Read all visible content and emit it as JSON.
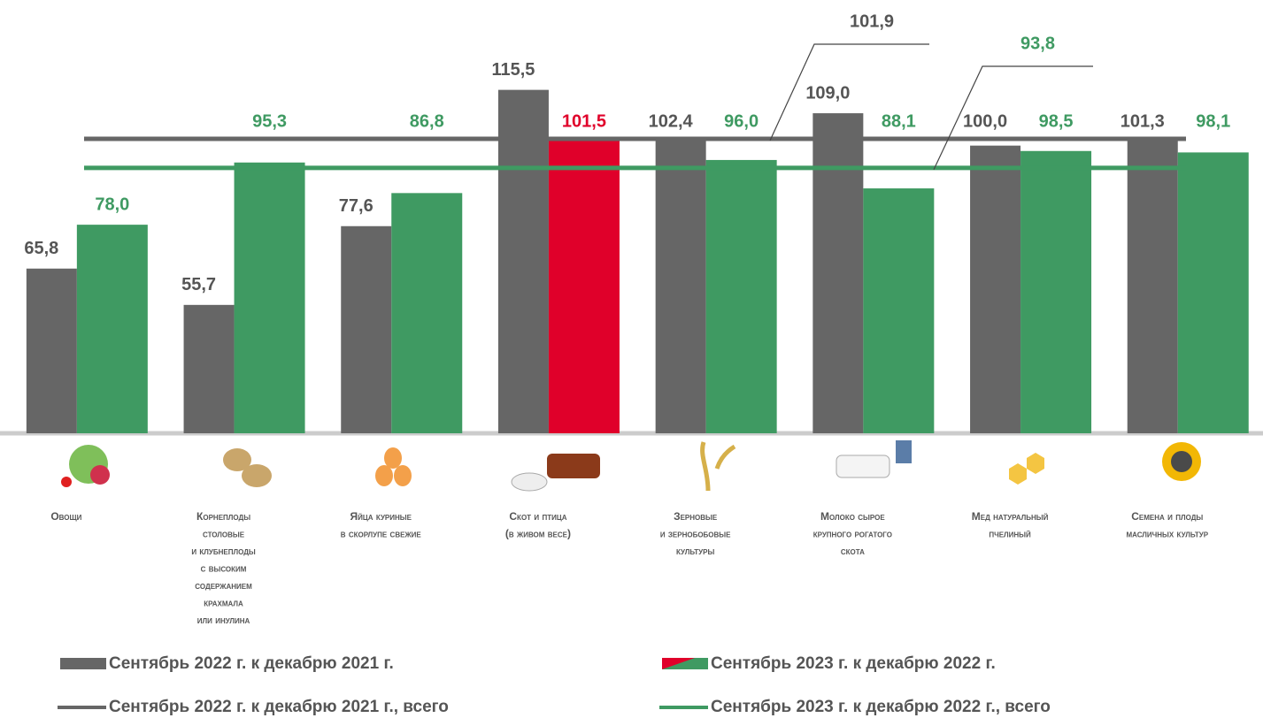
{
  "chart_data": {
    "type": "bar",
    "categories": [
      "Овощи",
      "Корнеплоды\nстоловые\nи клубнеплоды\nс высоким\nсодержанием\nкрахмала\nили инулина",
      "Яйца куриные\nв скорлупе свежие",
      "Скот и птица\n(в живом весе)",
      "Зерновые\nи зернобобовые\nкультуры",
      "Молоко сырое\nкрупного рогатого\nскота",
      "Мед натуральный\nпчелиный",
      "Семена и плоды\nмасличных культур"
    ],
    "series": [
      {
        "name": "Сентябрь 2022 г. к декабрю 2021 г.",
        "color": "#666666",
        "label_color": "#555555",
        "values": [
          65.8,
          55.7,
          77.6,
          115.5,
          102.4,
          109.0,
          100.0,
          101.3
        ],
        "value_labels": [
          "65,8",
          "55,7",
          "77,6",
          "115,5",
          "102,4",
          "109,0",
          "100,0",
          "101,3"
        ]
      },
      {
        "name": "Сентябрь 2023 г. к декабрю 2022 г.",
        "color": "#3f9a62",
        "colors": [
          "#3f9a62",
          "#3f9a62",
          "#3f9a62",
          "#e0002a",
          "#3f9a62",
          "#3f9a62",
          "#3f9a62",
          "#3f9a62"
        ],
        "values": [
          78.0,
          95.3,
          86.8,
          101.5,
          96.0,
          88.1,
          98.5,
          98.1
        ],
        "value_labels": [
          "78,0",
          "95,3",
          "86,8",
          "101,5",
          "96,0",
          "88,1",
          "98,5",
          "98,1"
        ]
      }
    ],
    "reference_lines": [
      {
        "name": "Сентябрь 2022 г. к декабрю 2021 г., всего",
        "color": "#666666",
        "value": 101.9,
        "value_label": "101,9",
        "label_color": "#555555"
      },
      {
        "name": "Сентябрь 2023 г. к декабрю 2022 г., всего",
        "color": "#3f9a62",
        "value": 93.8,
        "value_label": "93,8",
        "label_color": "#3f9a62"
      }
    ],
    "ylim": [
      20,
      140
    ]
  }
}
